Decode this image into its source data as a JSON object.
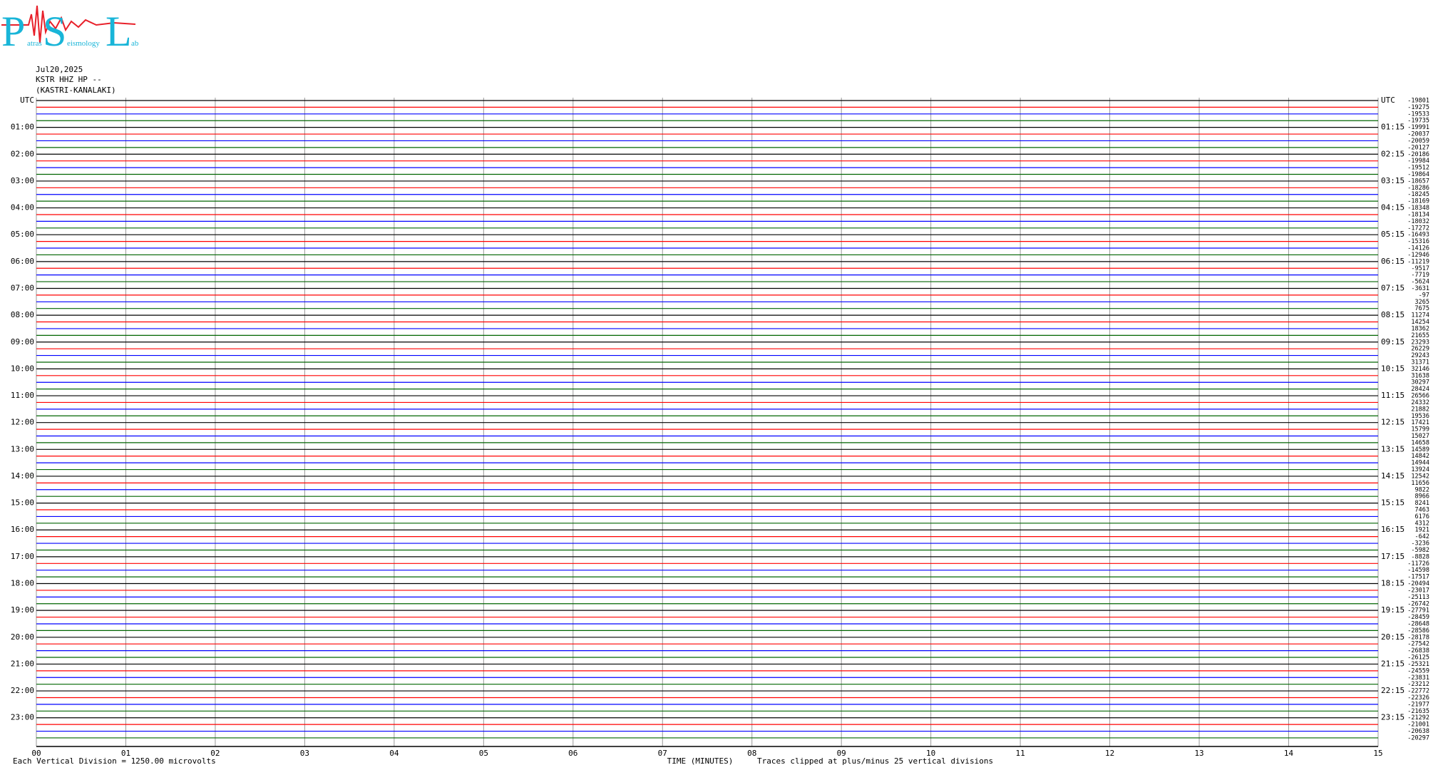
{
  "logo": {
    "letters": [
      "P",
      "S",
      "L"
    ],
    "words": [
      "atras",
      "eismology",
      "ab"
    ]
  },
  "header": {
    "lines": [
      "Jul20,2025",
      "KSTR HHZ HP --",
      "(KASTRI-KANALAKI)"
    ]
  },
  "plot": {
    "trace_colors": [
      "#000000",
      "#ff0000",
      "#0000ff",
      "#006400"
    ],
    "left_labels": [
      "UTC",
      "01:00",
      "02:00",
      "03:00",
      "04:00",
      "05:00",
      "06:00",
      "07:00",
      "08:00",
      "09:00",
      "10:00",
      "11:00",
      "12:00",
      "13:00",
      "14:00",
      "15:00",
      "16:00",
      "17:00",
      "18:00",
      "19:00",
      "20:00",
      "21:00",
      "22:00",
      "23:00"
    ],
    "right_labels": [
      "UTC",
      "01:15",
      "02:15",
      "03:15",
      "04:15",
      "05:15",
      "06:15",
      "07:15",
      "08:15",
      "09:15",
      "10:15",
      "11:15",
      "12:15",
      "13:15",
      "14:15",
      "15:15",
      "16:15",
      "17:15",
      "18:15",
      "19:15",
      "20:15",
      "21:15",
      "22:15",
      "23:15"
    ],
    "trace_offsets": [
      -19801,
      -19275,
      -19533,
      -19735,
      -19991,
      -20037,
      -20059,
      -20127,
      -20186,
      -19984,
      -19512,
      -19864,
      -18657,
      -18286,
      -18245,
      -18169,
      -18348,
      -18134,
      -18032,
      -17272,
      -16493,
      -15316,
      -14126,
      -12946,
      -11219,
      -9517,
      -7719,
      -5624,
      -3631,
      -97,
      3265,
      7675,
      11274,
      14254,
      18362,
      21655,
      23293,
      26229,
      29243,
      31371,
      32146,
      31638,
      30297,
      28424,
      26566,
      24332,
      21882,
      19536,
      17421,
      15799,
      15027,
      14658,
      14589,
      14842,
      14944,
      13924,
      12542,
      11656,
      9822,
      8966,
      8241,
      7463,
      6176,
      4312,
      1921,
      -642,
      -3236,
      -5982,
      -8828,
      -11726,
      -14598,
      -17517,
      -20494,
      -23017,
      -25113,
      -26742,
      -27791,
      -28459,
      -28648,
      -28586,
      -28178,
      -27542,
      -26838,
      -26125,
      -25321,
      -24559,
      -23831,
      -23212,
      -22772,
      -22326,
      -21977,
      -21635,
      -21292,
      -21001,
      -20638,
      -20297
    ],
    "minute_labels": [
      "00",
      "01",
      "02",
      "03",
      "04",
      "05",
      "06",
      "07",
      "08",
      "09",
      "10",
      "11",
      "12",
      "13",
      "14",
      "15"
    ],
    "x_title": "TIME (MINUTES)"
  },
  "footer": {
    "scale": "Each Vertical Division = 1250.00 microvolts",
    "clip": "Traces clipped at plus/minus 25 vertical divisions"
  }
}
